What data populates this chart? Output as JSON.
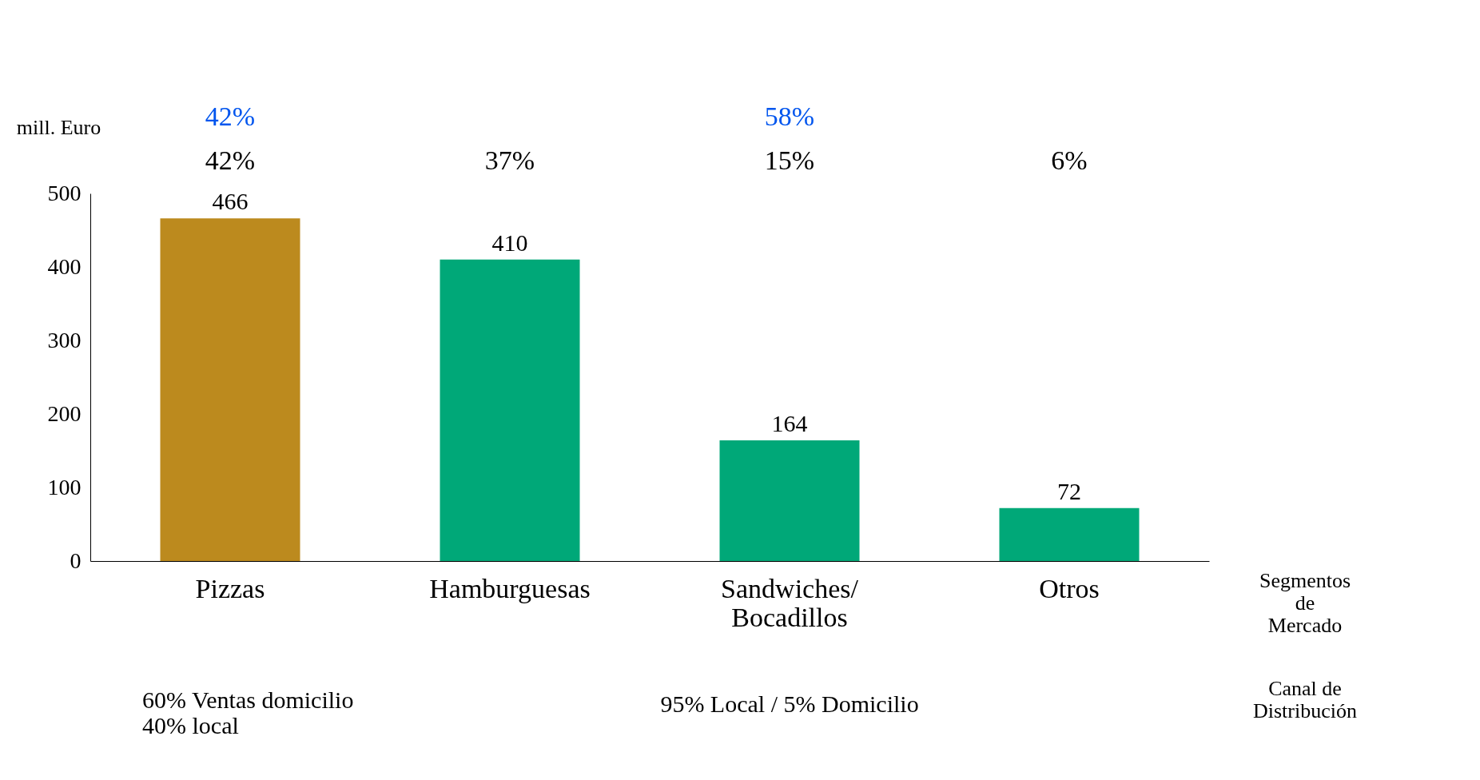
{
  "chart_data": {
    "type": "bar",
    "ylabel": "mill. Euro",
    "categories": [
      "Pizzas",
      "Hamburguesas",
      "Sandwiches/ Bocadillos",
      "Otros"
    ],
    "values": [
      466,
      410,
      164,
      72
    ],
    "colors": [
      "#bc8a1e",
      "#00a878",
      "#00a878",
      "#00a878"
    ],
    "ylim": [
      0,
      500
    ],
    "yticks": [
      0,
      100,
      200,
      300,
      400,
      500
    ],
    "grid": false,
    "data_labels": true,
    "annotations": [
      "42%",
      "58%",
      "42%",
      "37%",
      "15%",
      "6%",
      "60% Ventas domicilio\n40% local",
      "95% Local / 5% Domicilio",
      "Segmentos\nde\nMercado",
      "Canal de\nDistribución"
    ]
  }
}
